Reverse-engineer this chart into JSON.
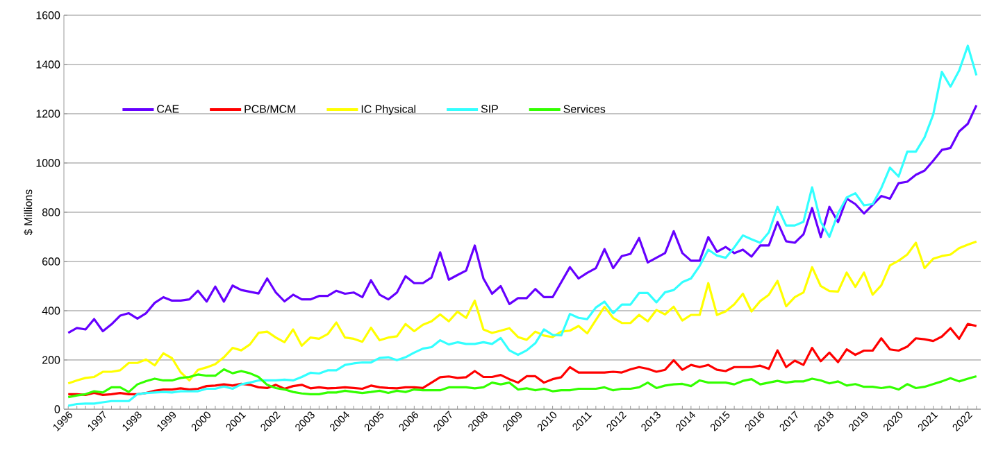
{
  "chart_data": {
    "type": "line",
    "ylabel": "$ Millions",
    "categories": [
      "1996",
      null,
      null,
      null,
      "1997",
      null,
      null,
      null,
      "1998",
      null,
      null,
      null,
      "1999",
      null,
      null,
      null,
      "2000",
      null,
      null,
      null,
      "2001",
      null,
      null,
      null,
      "2002",
      null,
      null,
      null,
      "2003",
      null,
      null,
      null,
      "2004",
      null,
      null,
      null,
      "2005",
      null,
      null,
      null,
      "2006",
      null,
      null,
      null,
      "2007",
      null,
      null,
      null,
      "2008",
      null,
      null,
      null,
      "2009",
      null,
      null,
      null,
      "2010",
      null,
      null,
      null,
      "2011",
      null,
      null,
      null,
      "2012",
      null,
      null,
      null,
      "2013",
      null,
      null,
      null,
      "2014",
      null,
      null,
      null,
      "2015",
      null,
      null,
      null,
      "2016",
      null,
      null,
      null,
      "2017",
      null,
      null,
      null,
      "2018",
      null,
      null,
      null,
      "2019",
      null,
      null,
      null,
      "2020",
      null,
      null,
      null,
      "2021",
      null,
      null,
      null,
      "2022",
      null
    ],
    "series": [
      {
        "name": "CAE",
        "color": "#6600ff",
        "values": [
          310,
          330,
          324,
          366,
          317,
          345,
          380,
          390,
          368,
          390,
          432,
          455,
          441,
          441,
          446,
          481,
          437,
          498,
          437,
          502,
          484,
          477,
          470,
          531,
          474,
          438,
          465,
          446,
          446,
          460,
          460,
          481,
          469,
          474,
          455,
          524,
          465,
          446,
          474,
          540,
          512,
          512,
          535,
          637,
          526,
          545,
          563,
          665,
          531,
          469,
          500,
          427,
          451,
          451,
          488,
          455,
          455,
          516,
          577,
          531,
          554,
          573,
          650,
          573,
          622,
          631,
          695,
          596,
          615,
          634,
          723,
          634,
          603,
          603,
          699,
          639,
          659,
          634,
          648,
          620,
          665,
          665,
          760,
          682,
          676,
          710,
          817,
          699,
          822,
          760,
          855,
          833,
          795,
          830,
          866,
          855,
          918,
          924,
          952,
          969,
          1009,
          1053,
          1061,
          1128,
          1159,
          1234
        ]
      },
      {
        "name": "PCB/MCM",
        "color": "#ff0000",
        "values": [
          61,
          61,
          58,
          66,
          58,
          61,
          66,
          61,
          61,
          66,
          75,
          80,
          80,
          85,
          80,
          83,
          94,
          96,
          101,
          96,
          103,
          99,
          89,
          86,
          99,
          83,
          94,
          99,
          85,
          89,
          85,
          86,
          89,
          86,
          83,
          96,
          89,
          86,
          85,
          89,
          89,
          86,
          108,
          130,
          133,
          127,
          130,
          155,
          131,
          131,
          139,
          122,
          108,
          134,
          134,
          108,
          122,
          130,
          171,
          149,
          149,
          149,
          149,
          152,
          149,
          162,
          171,
          164,
          152,
          160,
          199,
          160,
          180,
          171,
          180,
          160,
          155,
          171,
          171,
          171,
          177,
          164,
          239,
          171,
          197,
          180,
          249,
          195,
          230,
          191,
          243,
          221,
          238,
          238,
          288,
          243,
          238,
          254,
          288,
          284,
          277,
          295,
          329,
          286,
          346,
          338
        ]
      },
      {
        "name": "IC Physical",
        "color": "#ffff00",
        "values": [
          105,
          117,
          127,
          131,
          152,
          152,
          158,
          188,
          188,
          202,
          178,
          227,
          207,
          150,
          117,
          160,
          170,
          183,
          211,
          249,
          239,
          263,
          310,
          315,
          291,
          272,
          324,
          258,
          291,
          286,
          305,
          352,
          291,
          286,
          274,
          331,
          280,
          291,
          296,
          346,
          317,
          343,
          357,
          385,
          357,
          396,
          371,
          441,
          324,
          310,
          319,
          329,
          293,
          282,
          315,
          299,
          293,
          315,
          319,
          338,
          308,
          362,
          416,
          371,
          350,
          350,
          383,
          357,
          403,
          385,
          416,
          360,
          383,
          383,
          512,
          383,
          397,
          426,
          469,
          397,
          439,
          465,
          521,
          418,
          455,
          474,
          577,
          500,
          480,
          478,
          555,
          497,
          555,
          465,
          503,
          584,
          603,
          628,
          676,
          573,
          611,
          622,
          628,
          654,
          668,
          681
        ]
      },
      {
        "name": "SIP",
        "color": "#33ffff",
        "values": [
          14,
          21,
          23,
          23,
          28,
          33,
          33,
          33,
          61,
          66,
          68,
          70,
          68,
          73,
          73,
          73,
          83,
          83,
          92,
          83,
          101,
          108,
          117,
          117,
          117,
          120,
          117,
          131,
          148,
          145,
          158,
          158,
          180,
          186,
          190,
          190,
          208,
          211,
          199,
          211,
          230,
          246,
          252,
          280,
          263,
          272,
          265,
          265,
          272,
          265,
          289,
          239,
          221,
          239,
          268,
          324,
          302,
          300,
          387,
          371,
          366,
          413,
          437,
          390,
          425,
          425,
          472,
          472,
          434,
          475,
          484,
          516,
          531,
          582,
          648,
          624,
          615,
          657,
          706,
          690,
          676,
          718,
          822,
          746,
          746,
          761,
          901,
          761,
          700,
          795,
          860,
          877,
          828,
          833,
          898,
          981,
          945,
          1046,
          1046,
          1104,
          1196,
          1370,
          1310,
          1375,
          1476,
          1356
        ]
      },
      {
        "name": "Services",
        "color": "#33ff00",
        "values": [
          49,
          56,
          61,
          73,
          68,
          89,
          89,
          70,
          101,
          114,
          124,
          117,
          117,
          127,
          131,
          141,
          136,
          136,
          162,
          146,
          155,
          146,
          131,
          99,
          86,
          80,
          70,
          64,
          61,
          61,
          68,
          68,
          75,
          70,
          66,
          70,
          75,
          66,
          75,
          70,
          80,
          77,
          77,
          77,
          89,
          89,
          89,
          85,
          89,
          108,
          101,
          108,
          80,
          85,
          77,
          83,
          73,
          77,
          77,
          83,
          83,
          83,
          89,
          77,
          83,
          83,
          89,
          108,
          86,
          96,
          101,
          103,
          94,
          117,
          108,
          108,
          108,
          101,
          115,
          122,
          101,
          108,
          115,
          108,
          113,
          113,
          124,
          117,
          105,
          113,
          96,
          102,
          91,
          91,
          86,
          91,
          80,
          102,
          86,
          91,
          102,
          113,
          126,
          113,
          124,
          134
        ]
      }
    ],
    "ylim": [
      0,
      1600
    ],
    "yticks": [
      0,
      200,
      400,
      600,
      800,
      1000,
      1200,
      1400,
      1600
    ],
    "grid": "y",
    "legend": "top left"
  }
}
